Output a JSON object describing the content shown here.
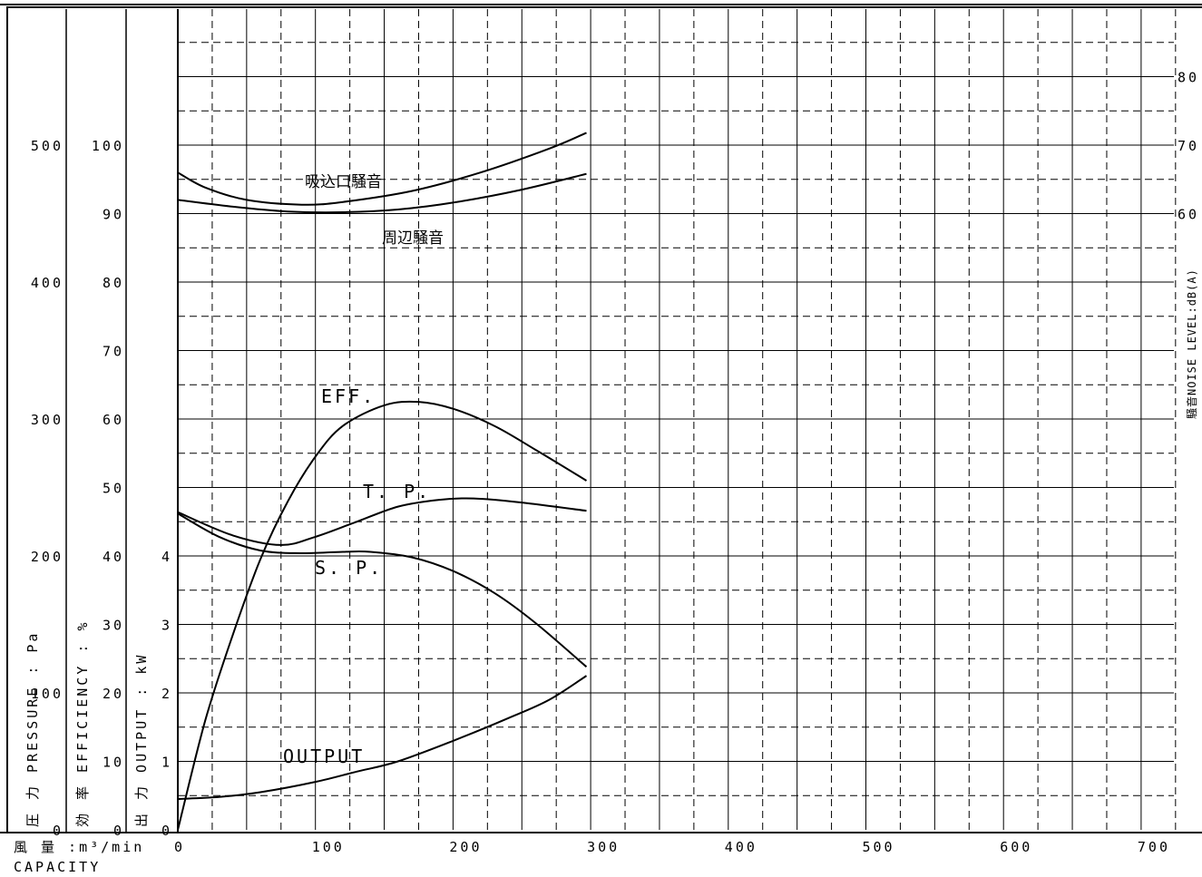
{
  "chart_data": {
    "type": "line",
    "x_axis": {
      "label_line1": "風 量 :m³/min",
      "label_line2": "CAPACITY",
      "ticks": [
        "0",
        "100",
        "200",
        "300",
        "400",
        "500",
        "600",
        "700"
      ],
      "range": [
        0,
        730
      ]
    },
    "pressure_axis": {
      "label": "圧 力 PRESSURE : Pa",
      "ticks": [
        "0",
        "100",
        "200",
        "300",
        "400",
        "500"
      ],
      "range": [
        0,
        600
      ]
    },
    "efficiency_axis": {
      "label": "効 率 EFFICIENCY : %",
      "ticks": [
        "0",
        "10",
        "20",
        "30",
        "40",
        "50",
        "60",
        "70",
        "80",
        "90",
        "100"
      ],
      "range": [
        0,
        120
      ]
    },
    "output_axis": {
      "label": "出 力 OUTPUT : kW",
      "ticks": [
        "0",
        "1",
        "2",
        "3",
        "4"
      ],
      "range": [
        0,
        12
      ]
    },
    "noise_axis": {
      "label": "騒音NOISE LEVEL:dB(A)",
      "ticks": [
        "60",
        "70",
        "80"
      ],
      "range": [
        0,
        90
      ]
    },
    "series": [
      {
        "name": "吸込口騒音",
        "axis": "noise",
        "points": [
          [
            0,
            66
          ],
          [
            20,
            63.8
          ],
          [
            50,
            62
          ],
          [
            90,
            61.3
          ],
          [
            120,
            61.7
          ],
          [
            170,
            63.3
          ],
          [
            220,
            66
          ],
          [
            270,
            69.5
          ],
          [
            297,
            71.8
          ]
        ]
      },
      {
        "name": "周辺騒音",
        "axis": "noise",
        "points": [
          [
            0,
            62
          ],
          [
            40,
            61
          ],
          [
            80,
            60.3
          ],
          [
            120,
            60.2
          ],
          [
            160,
            60.6
          ],
          [
            200,
            61.6
          ],
          [
            250,
            63.5
          ],
          [
            297,
            65.8
          ]
        ]
      },
      {
        "name": "EFF.",
        "axis": "efficiency",
        "points": [
          [
            0,
            0
          ],
          [
            20,
            16
          ],
          [
            40,
            28.5
          ],
          [
            60,
            39.5
          ],
          [
            80,
            48
          ],
          [
            100,
            54.5
          ],
          [
            120,
            59
          ],
          [
            150,
            62
          ],
          [
            175,
            62.5
          ],
          [
            200,
            61.5
          ],
          [
            230,
            59
          ],
          [
            260,
            55.5
          ],
          [
            297,
            51
          ]
        ]
      },
      {
        "name": "T. P.",
        "axis": "pressure",
        "points": [
          [
            0,
            232
          ],
          [
            40,
            215
          ],
          [
            75,
            208
          ],
          [
            100,
            214
          ],
          [
            130,
            225
          ],
          [
            160,
            236
          ],
          [
            190,
            241
          ],
          [
            215,
            242
          ],
          [
            250,
            239
          ],
          [
            297,
            233
          ]
        ]
      },
      {
        "name": "S. P.",
        "axis": "pressure",
        "points": [
          [
            0,
            231
          ],
          [
            30,
            214
          ],
          [
            60,
            204
          ],
          [
            90,
            202
          ],
          [
            120,
            203
          ],
          [
            140,
            203
          ],
          [
            170,
            199
          ],
          [
            200,
            189
          ],
          [
            230,
            173
          ],
          [
            260,
            151
          ],
          [
            297,
            119
          ]
        ]
      },
      {
        "name": "OUTPUT",
        "axis": "output",
        "points": [
          [
            0,
            0.45
          ],
          [
            30,
            0.48
          ],
          [
            60,
            0.55
          ],
          [
            100,
            0.7
          ],
          [
            130,
            0.85
          ],
          [
            160,
            1.0
          ],
          [
            200,
            1.3
          ],
          [
            240,
            1.63
          ],
          [
            270,
            1.9
          ],
          [
            297,
            2.25
          ]
        ]
      }
    ],
    "grid": true
  }
}
